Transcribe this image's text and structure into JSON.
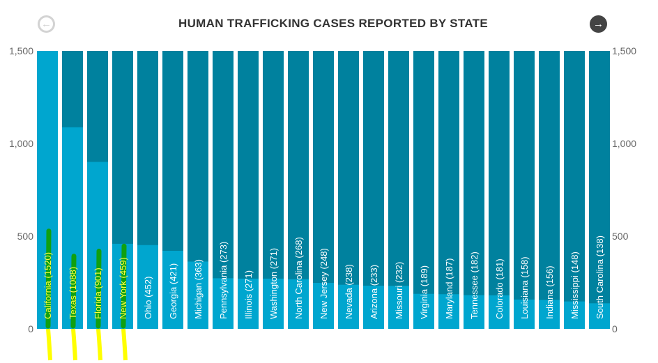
{
  "chart_data": {
    "type": "bar",
    "title": "HUMAN TRAFFICKING CASES REPORTED BY STATE",
    "categories": [
      "California",
      "Texas",
      "Florida",
      "New York",
      "Ohio",
      "Georgia",
      "Michigan",
      "Pennsylvania",
      "Illinois",
      "Washington",
      "North Carolina",
      "New Jersey",
      "Nevada",
      "Arizona",
      "Missouri",
      "Virginia",
      "Maryland",
      "Tennessee",
      "Colorado",
      "Louisiana",
      "Indiana",
      "Mississippi",
      "South Carolina"
    ],
    "values": [
      1520,
      1088,
      901,
      459,
      452,
      421,
      363,
      273,
      271,
      271,
      268,
      248,
      238,
      233,
      232,
      189,
      187,
      182,
      181,
      158,
      156,
      148,
      138
    ],
    "ylim": [
      0,
      1500
    ],
    "yticks": [
      "0",
      "500",
      "1,000",
      "1,500"
    ],
    "ytick_values": [
      0,
      500,
      1000,
      1500
    ],
    "xlabel": "",
    "ylabel": "",
    "highlighted_count": 4
  },
  "nav": {
    "prev_icon": "arrow-left-circle-icon",
    "next_icon": "arrow-right-circle-icon",
    "prev": "←",
    "next": "→"
  },
  "colors": {
    "fill": "#00a6cf",
    "background_bar": "#00819e",
    "marker_green": "#10a010",
    "marker_yellow": "#ffff00"
  }
}
